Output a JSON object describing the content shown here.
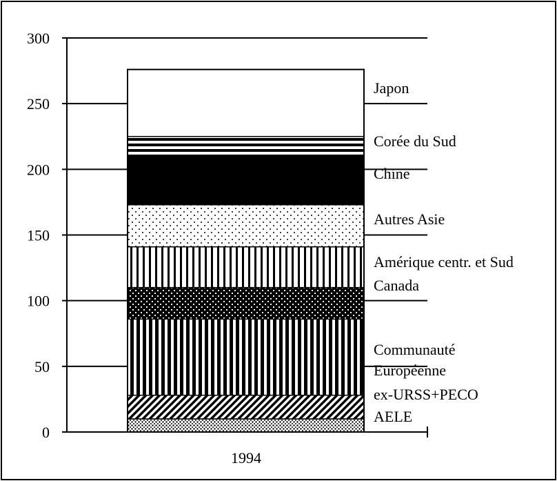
{
  "chart_data": {
    "type": "bar",
    "stacked": true,
    "categories": [
      "1994"
    ],
    "ylim": [
      0,
      300
    ],
    "yticks": [
      0,
      50,
      100,
      150,
      200,
      250,
      300
    ],
    "grid": false,
    "legend_placement": "right, beside each segment",
    "series": [
      {
        "name": "AELE",
        "values": [
          10
        ],
        "pattern": "dense-dots"
      },
      {
        "name": "ex-URSS+PECO",
        "values": [
          18
        ],
        "pattern": "diagonal-hatch"
      },
      {
        "name": "Communauté Européenne",
        "label_lines": [
          "Communauté",
          "Européenne"
        ],
        "values": [
          58
        ],
        "pattern": "vertical-lines-thick"
      },
      {
        "name": "Canada",
        "values": [
          24
        ],
        "pattern": "dark-checker"
      },
      {
        "name": "Amérique centr. et Sud",
        "values": [
          31
        ],
        "pattern": "vertical-lines-thin"
      },
      {
        "name": "Autres Asie",
        "values": [
          32
        ],
        "pattern": "light-dots"
      },
      {
        "name": "Chine",
        "values": [
          37
        ],
        "pattern": "solid-black"
      },
      {
        "name": "Corée du Sud",
        "values": [
          15
        ],
        "pattern": "horizontal-lines"
      },
      {
        "name": "Japon",
        "values": [
          51
        ],
        "pattern": "white"
      }
    ]
  },
  "colors": {
    "ink": "#000000",
    "paper": "#ffffff"
  }
}
